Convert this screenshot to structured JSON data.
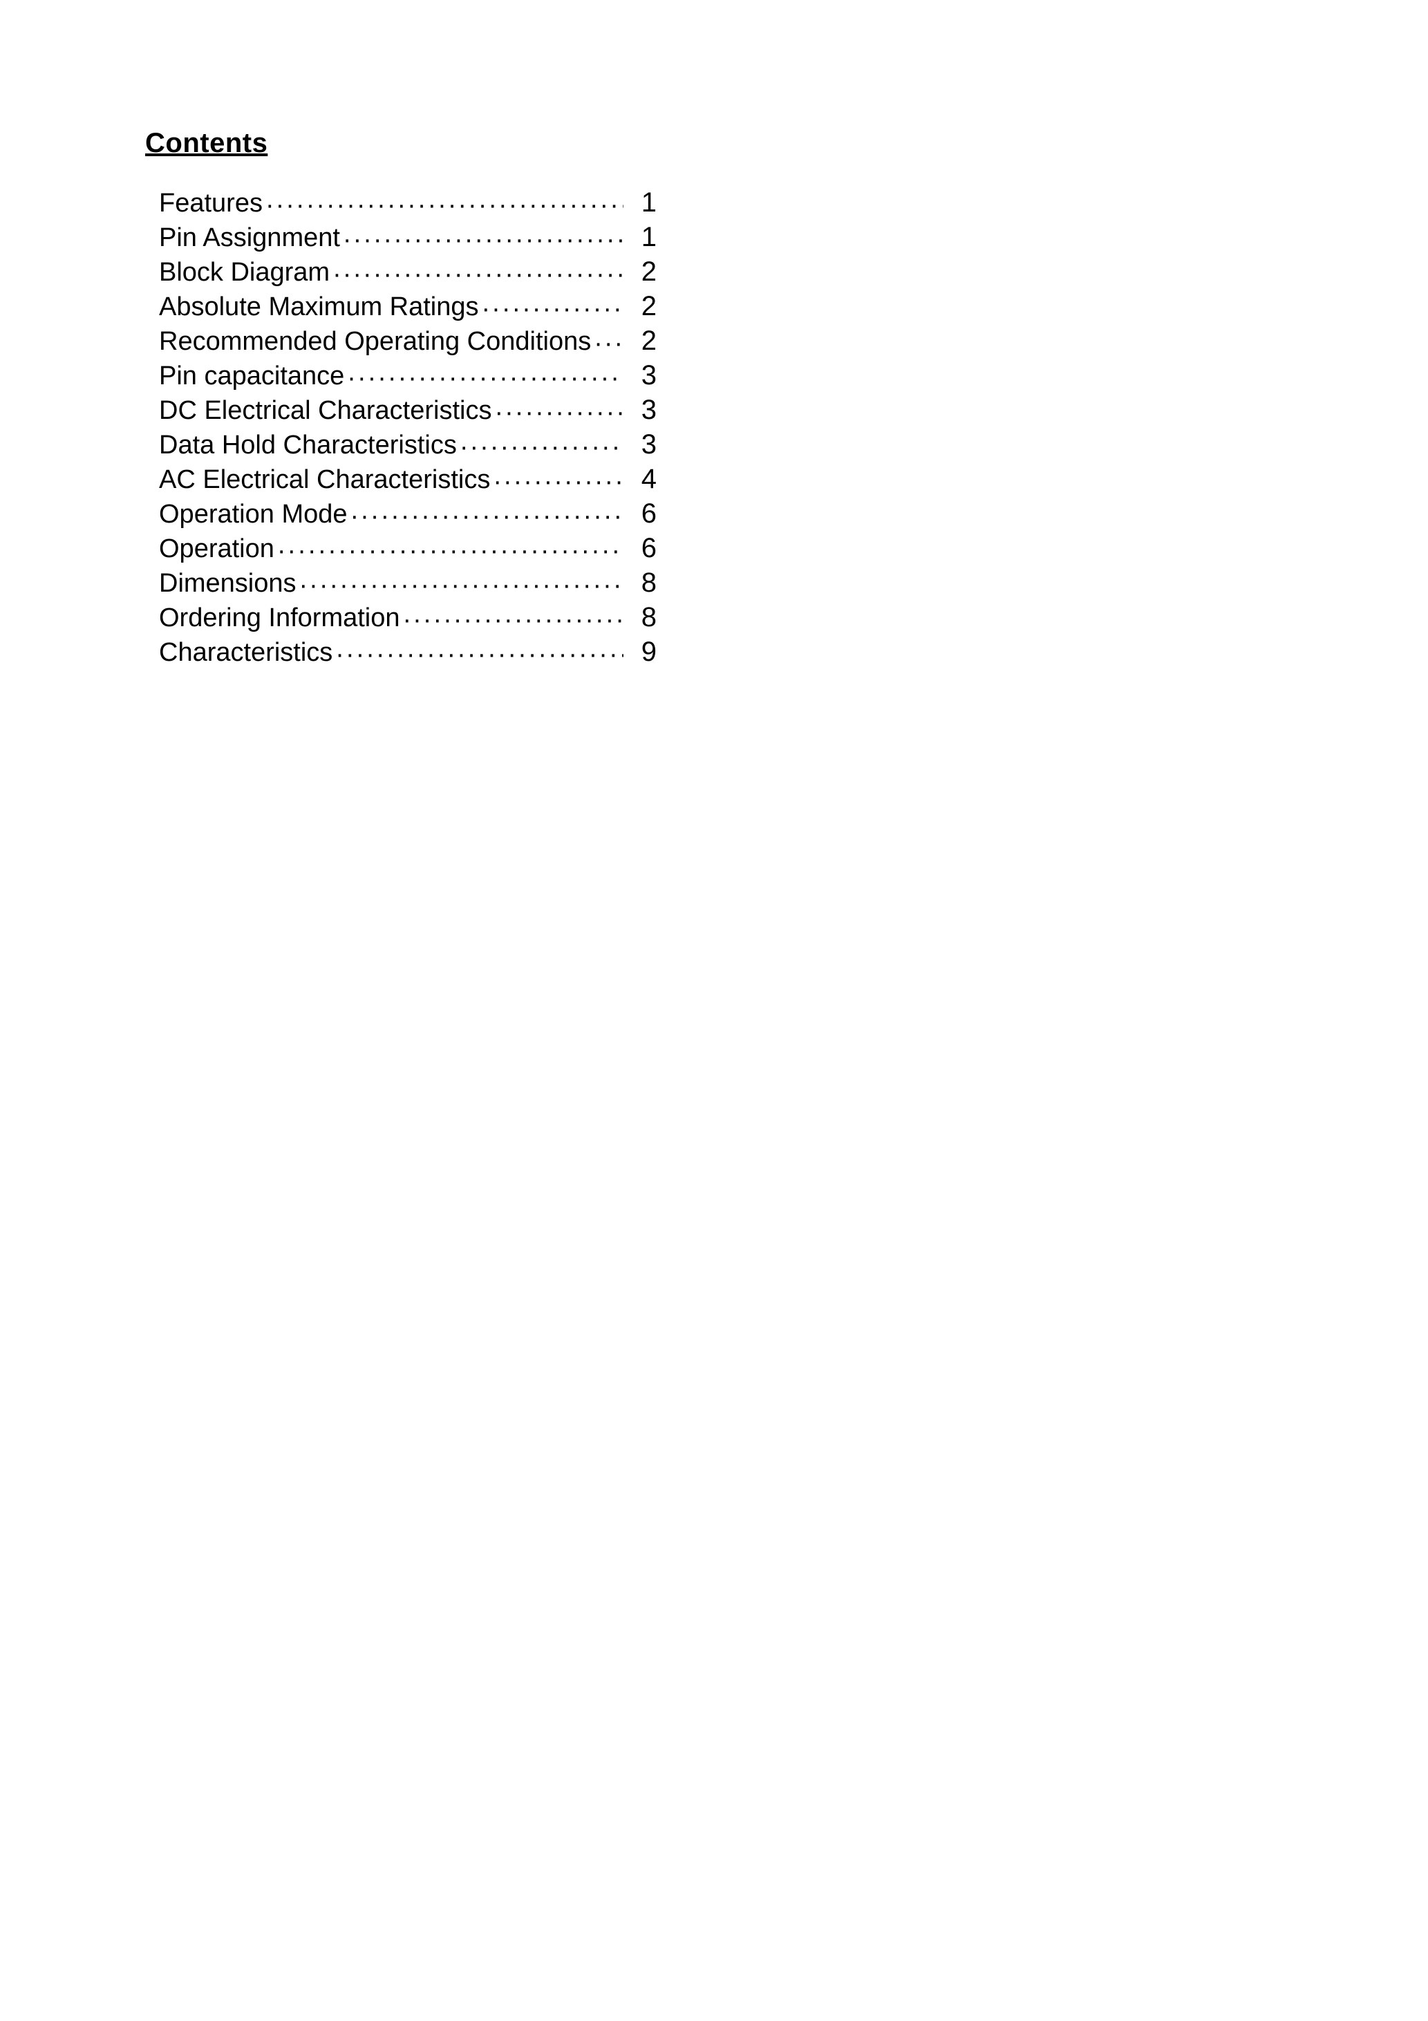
{
  "heading": "Contents",
  "toc": [
    {
      "label": "Features",
      "page": "1"
    },
    {
      "label": "Pin Assignment",
      "page": "1"
    },
    {
      "label": "Block Diagram",
      "page": "2"
    },
    {
      "label": "Absolute Maximum Ratings",
      "page": "2"
    },
    {
      "label": "Recommended Operating Conditions",
      "page": "2"
    },
    {
      "label": "Pin capacitance",
      "page": "3"
    },
    {
      "label": "DC Electrical Characteristics",
      "page": "3"
    },
    {
      "label": "Data Hold Characteristics",
      "page": "3"
    },
    {
      "label": "AC Electrical Characteristics",
      "page": "4"
    },
    {
      "label": "Operation Mode",
      "page": "6"
    },
    {
      "label": "Operation",
      "page": "6"
    },
    {
      "label": "Dimensions",
      "page": "8"
    },
    {
      "label": "Ordering Information",
      "page": "8"
    },
    {
      "label": "Characteristics",
      "page": "9"
    }
  ],
  "colors": {
    "bg": "#ffffff",
    "text": "#000000"
  }
}
